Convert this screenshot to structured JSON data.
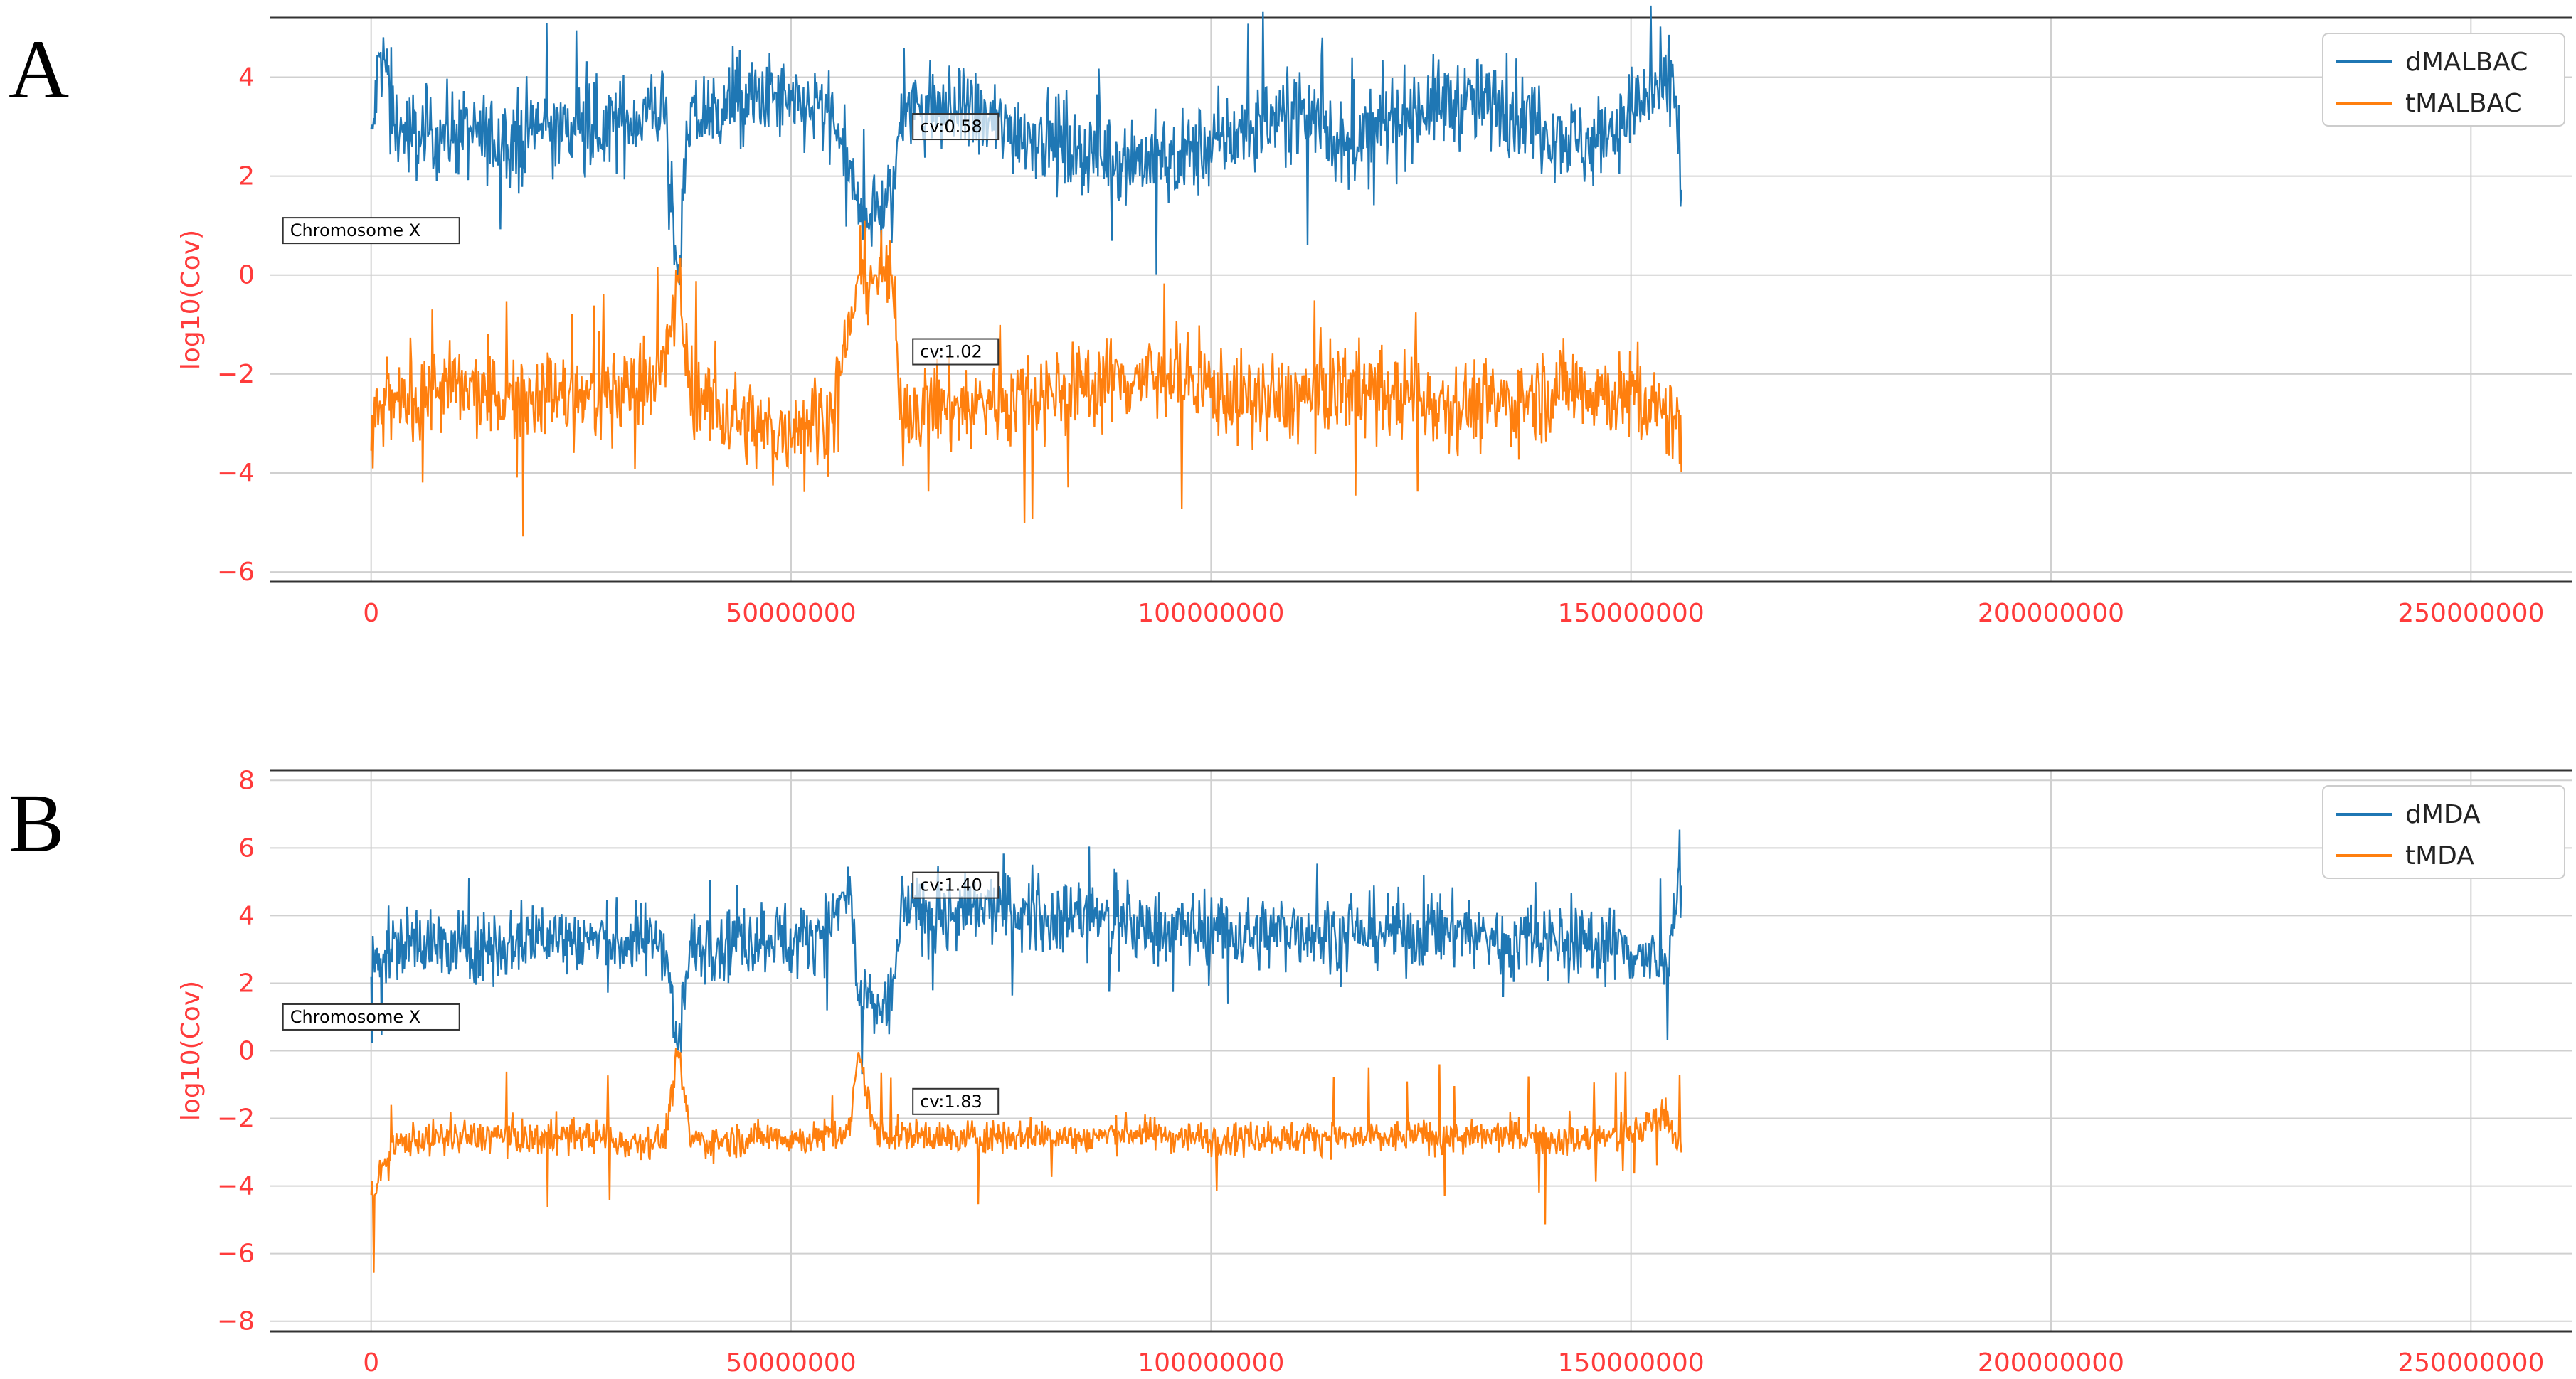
{
  "panels": [
    {
      "letter": "A"
    },
    {
      "letter": "B"
    }
  ],
  "chart_data": [
    {
      "type": "line",
      "panel": "A",
      "title": "",
      "xlabel": "",
      "ylabel": "log10(Cov)",
      "xlim": [
        -12000000,
        262000000
      ],
      "ylim": [
        -6.2,
        5.2
      ],
      "x_ticks": [
        0,
        50000000,
        100000000,
        150000000,
        200000000,
        250000000
      ],
      "x_tick_labels": [
        "0",
        "50000000",
        "100000000",
        "150000000",
        "200000000",
        "250000000"
      ],
      "y_ticks": [
        -6,
        -4,
        -2,
        0,
        2,
        4
      ],
      "y_tick_labels": [
        "−6",
        "−4",
        "−2",
        "0",
        "2",
        "4"
      ],
      "grid": true,
      "legend_position": "top-right",
      "series": [
        {
          "name": "dMALBAC",
          "color": "#1f77b4",
          "x": [
            0,
            1000000,
            2000000,
            3000000,
            5000000,
            10000000,
            15000000,
            20000000,
            25000000,
            30000000,
            35000000,
            36500000,
            38000000,
            40000000,
            45000000,
            48500000,
            50000000,
            52000000,
            55000000,
            58000000,
            60000000,
            62000000,
            63000000,
            65000000,
            70000000,
            75000000,
            80000000,
            85000000,
            90000000,
            95000000,
            100000000,
            105000000,
            110000000,
            114000000,
            116000000,
            120000000,
            125000000,
            130000000,
            135000000,
            140000000,
            143500000,
            145000000,
            150000000,
            155000000,
            156000000
          ],
          "y": [
            2.5,
            4.4,
            4.1,
            3.0,
            2.8,
            2.9,
            2.7,
            3.0,
            2.9,
            3.1,
            3.4,
            0.0,
            3.1,
            3.3,
            3.5,
            3.6,
            3.3,
            3.4,
            3.2,
            1.3,
            1.3,
            1.4,
            3.2,
            3.4,
            3.3,
            3.0,
            2.8,
            2.5,
            2.4,
            2.3,
            2.6,
            3.0,
            3.4,
            3.0,
            2.4,
            3.0,
            3.4,
            3.5,
            3.4,
            3.0,
            2.7,
            2.6,
            3.3,
            3.8,
            2.5
          ]
        },
        {
          "name": "tMALBAC",
          "color": "#ff7f0e",
          "x": [
            0,
            1000000,
            2000000,
            3000000,
            5000000,
            10000000,
            15000000,
            20000000,
            25000000,
            30000000,
            35000000,
            36500000,
            38000000,
            40000000,
            45000000,
            48500000,
            50000000,
            52000000,
            55000000,
            58000000,
            60000000,
            62000000,
            63000000,
            65000000,
            70000000,
            75000000,
            80000000,
            85000000,
            90000000,
            95000000,
            100000000,
            105000000,
            110000000,
            114000000,
            116000000,
            120000000,
            125000000,
            130000000,
            135000000,
            140000000,
            143500000,
            145000000,
            150000000,
            155000000,
            156000000
          ],
          "y": [
            -3.5,
            -2.8,
            -2.5,
            -2.7,
            -2.4,
            -2.3,
            -2.5,
            -2.4,
            -2.5,
            -2.3,
            -1.9,
            0.0,
            -2.3,
            -2.6,
            -3.0,
            -3.3,
            -3.0,
            -2.8,
            -2.9,
            0.0,
            0.0,
            0.0,
            -2.8,
            -2.6,
            -2.7,
            -2.5,
            -2.4,
            -2.2,
            -2.1,
            -2.0,
            -2.3,
            -2.6,
            -2.5,
            -2.3,
            -2.2,
            -2.4,
            -2.5,
            -2.6,
            -2.6,
            -2.4,
            -2.2,
            -2.3,
            -2.5,
            -2.9,
            -3.2
          ]
        }
      ],
      "annotations": [
        {
          "text": "cv:0.58",
          "x": 64500000,
          "y": 3.0
        },
        {
          "text": "cv:1.02",
          "x": 64500000,
          "y": -1.55
        },
        {
          "text": "Chromosome X",
          "x": -10500000,
          "y": 0.9
        }
      ]
    },
    {
      "type": "line",
      "panel": "B",
      "title": "",
      "xlabel": "",
      "ylabel": "log10(Cov)",
      "xlim": [
        -12000000,
        262000000
      ],
      "ylim": [
        -8.3,
        8.3
      ],
      "x_ticks": [
        0,
        50000000,
        100000000,
        150000000,
        200000000,
        250000000
      ],
      "x_tick_labels": [
        "0",
        "50000000",
        "100000000",
        "150000000",
        "200000000",
        "250000000"
      ],
      "y_ticks": [
        -8,
        -6,
        -4,
        -2,
        0,
        2,
        4,
        6,
        8
      ],
      "y_tick_labels": [
        "−8",
        "−6",
        "−4",
        "−2",
        "0",
        "2",
        "4",
        "6",
        "8"
      ],
      "grid": true,
      "legend_position": "top-right",
      "series": [
        {
          "name": "dMDA",
          "color": "#1f77b4",
          "x": [
            0,
            1000000,
            2000000,
            3000000,
            5000000,
            10000000,
            15000000,
            20000000,
            25000000,
            30000000,
            35000000,
            36500000,
            38000000,
            40000000,
            45000000,
            48500000,
            50000000,
            52000000,
            55000000,
            57000000,
            58000000,
            60000000,
            62000000,
            63000000,
            65000000,
            70000000,
            75000000,
            80000000,
            85000000,
            90000000,
            95000000,
            100000000,
            105000000,
            110000000,
            114000000,
            116000000,
            120000000,
            125000000,
            130000000,
            135000000,
            140000000,
            143500000,
            145000000,
            150000000,
            154000000,
            156000000
          ],
          "y": [
            2.5,
            3.1,
            2.9,
            3.0,
            3.3,
            3.0,
            3.1,
            3.4,
            3.3,
            3.2,
            3.3,
            0.0,
            3.0,
            3.2,
            3.3,
            3.5,
            3.1,
            3.4,
            3.9,
            4.8,
            1.5,
            1.3,
            1.4,
            4.2,
            4.1,
            4.0,
            4.3,
            3.9,
            4.1,
            3.7,
            3.6,
            3.7,
            3.4,
            3.6,
            3.5,
            3.3,
            3.6,
            3.4,
            3.6,
            3.2,
            3.4,
            3.1,
            3.3,
            3.0,
            2.4,
            5.5
          ]
        },
        {
          "name": "tMDA",
          "color": "#ff7f0e",
          "x": [
            0,
            1000000,
            2000000,
            3000000,
            5000000,
            10000000,
            15000000,
            20000000,
            25000000,
            30000000,
            35000000,
            36500000,
            38000000,
            40000000,
            45000000,
            48500000,
            50000000,
            52000000,
            55000000,
            57000000,
            58000000,
            60000000,
            62000000,
            63000000,
            65000000,
            70000000,
            75000000,
            80000000,
            85000000,
            90000000,
            95000000,
            100000000,
            105000000,
            110000000,
            114000000,
            116000000,
            120000000,
            125000000,
            130000000,
            135000000,
            140000000,
            143500000,
            145000000,
            150000000,
            154000000,
            156000000
          ],
          "y": [
            -4.3,
            -3.8,
            -3.0,
            -2.8,
            -2.6,
            -2.6,
            -2.5,
            -2.6,
            -2.5,
            -2.7,
            -2.6,
            0.0,
            -2.6,
            -2.7,
            -2.6,
            -2.5,
            -2.6,
            -2.6,
            -2.5,
            -2.4,
            0.0,
            -2.4,
            -2.5,
            -2.5,
            -2.5,
            -2.6,
            -2.5,
            -2.5,
            -2.6,
            -2.4,
            -2.5,
            -2.6,
            -2.5,
            -2.6,
            -2.5,
            -2.6,
            -2.6,
            -2.5,
            -2.6,
            -2.5,
            -2.6,
            -2.7,
            -2.6,
            -2.5,
            -1.8,
            -2.9
          ]
        }
      ],
      "annotations": [
        {
          "text": "cv:1.40",
          "x": 64500000,
          "y": 4.9
        },
        {
          "text": "cv:1.83",
          "x": 64500000,
          "y": -1.5
        },
        {
          "text": "Chromosome X",
          "x": -10500000,
          "y": 1.0
        }
      ]
    }
  ]
}
